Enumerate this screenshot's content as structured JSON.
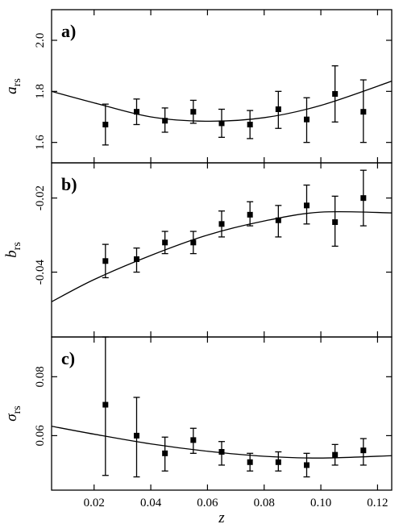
{
  "chart_data": [
    {
      "type": "scatter",
      "panel_label": "a)",
      "ylabel": {
        "main": "a",
        "main_style": "italic",
        "sub": "rs"
      },
      "xlim": [
        0.005,
        0.125
      ],
      "ylim": [
        1.52,
        2.12
      ],
      "yticks": [
        1.6,
        1.8,
        2.0
      ],
      "ytick_labels": [
        "1.6",
        "1.8",
        "2.0"
      ],
      "series": [
        {
          "kind": "points_with_errorbars",
          "x": [
            0.024,
            0.035,
            0.045,
            0.055,
            0.065,
            0.075,
            0.085,
            0.095,
            0.105,
            0.115
          ],
          "y": [
            1.67,
            1.72,
            1.685,
            1.72,
            1.675,
            1.67,
            1.73,
            1.69,
            1.79,
            1.72
          ],
          "err_low": [
            1.59,
            1.67,
            1.64,
            1.675,
            1.62,
            1.615,
            1.655,
            1.6,
            1.68,
            1.6
          ],
          "err_high": [
            1.75,
            1.77,
            1.735,
            1.765,
            1.73,
            1.725,
            1.8,
            1.775,
            1.9,
            1.845
          ]
        },
        {
          "kind": "fit_curve",
          "x": [
            0.005,
            0.02,
            0.04,
            0.06,
            0.08,
            0.1,
            0.125
          ],
          "y": [
            1.8,
            1.755,
            1.7,
            1.683,
            1.697,
            1.745,
            1.84
          ]
        }
      ]
    },
    {
      "type": "scatter",
      "panel_label": "b)",
      "ylabel": {
        "main": "b",
        "main_style": "italic",
        "sub": "rs"
      },
      "xlim": [
        0.005,
        0.125
      ],
      "ylim": [
        -0.0575,
        -0.0105
      ],
      "yticks": [
        -0.04,
        -0.02
      ],
      "ytick_labels": [
        "-0.04",
        "-0.02"
      ],
      "series": [
        {
          "kind": "points_with_errorbars",
          "x": [
            0.024,
            0.035,
            0.045,
            0.055,
            0.065,
            0.075,
            0.085,
            0.095,
            0.105,
            0.115
          ],
          "y": [
            -0.037,
            -0.0365,
            -0.032,
            -0.032,
            -0.027,
            -0.0245,
            -0.026,
            -0.022,
            -0.0265,
            -0.02
          ],
          "err_low": [
            -0.0415,
            -0.04,
            -0.035,
            -0.035,
            -0.0305,
            -0.0275,
            -0.0305,
            -0.027,
            -0.033,
            -0.0275
          ],
          "err_high": [
            -0.0325,
            -0.0335,
            -0.029,
            -0.029,
            -0.0235,
            -0.021,
            -0.022,
            -0.0165,
            -0.0195,
            -0.0125
          ]
        },
        {
          "kind": "fit_curve",
          "x": [
            0.005,
            0.02,
            0.04,
            0.06,
            0.08,
            0.1,
            0.125
          ],
          "y": [
            -0.048,
            -0.042,
            -0.0355,
            -0.03,
            -0.0262,
            -0.0238,
            -0.024
          ]
        }
      ]
    },
    {
      "type": "scatter",
      "panel_label": "c)",
      "ylabel": {
        "main": "σ",
        "main_style": "normal",
        "sub": "rs"
      },
      "xlim": [
        0.005,
        0.125
      ],
      "ylim": [
        0.0415,
        0.0935
      ],
      "yticks": [
        0.06,
        0.08
      ],
      "ytick_labels": [
        "0.06",
        "0.08"
      ],
      "xticks": [
        0.02,
        0.04,
        0.06,
        0.08,
        0.1,
        0.12
      ],
      "xtick_labels": [
        "0.02",
        "0.04",
        "0.06",
        "0.08",
        "0.10",
        "0.12"
      ],
      "xlabel": "z",
      "series": [
        {
          "kind": "points_with_errorbars",
          "x": [
            0.024,
            0.035,
            0.045,
            0.055,
            0.065,
            0.075,
            0.085,
            0.095,
            0.105,
            0.115
          ],
          "y": [
            0.0705,
            0.06,
            0.054,
            0.0585,
            0.0545,
            0.051,
            0.051,
            0.05,
            0.0535,
            0.055
          ],
          "err_low": [
            0.0465,
            0.046,
            0.048,
            0.054,
            0.05,
            0.048,
            0.048,
            0.046,
            0.05,
            0.05
          ],
          "err_high": [
            0.0935,
            0.073,
            0.0595,
            0.0625,
            0.058,
            0.054,
            0.0545,
            0.054,
            0.057,
            0.059
          ]
        },
        {
          "kind": "fit_curve",
          "x": [
            0.005,
            0.02,
            0.04,
            0.06,
            0.08,
            0.1,
            0.125
          ],
          "y": [
            0.0632,
            0.0605,
            0.0572,
            0.0547,
            0.053,
            0.0524,
            0.0532
          ]
        }
      ]
    }
  ]
}
